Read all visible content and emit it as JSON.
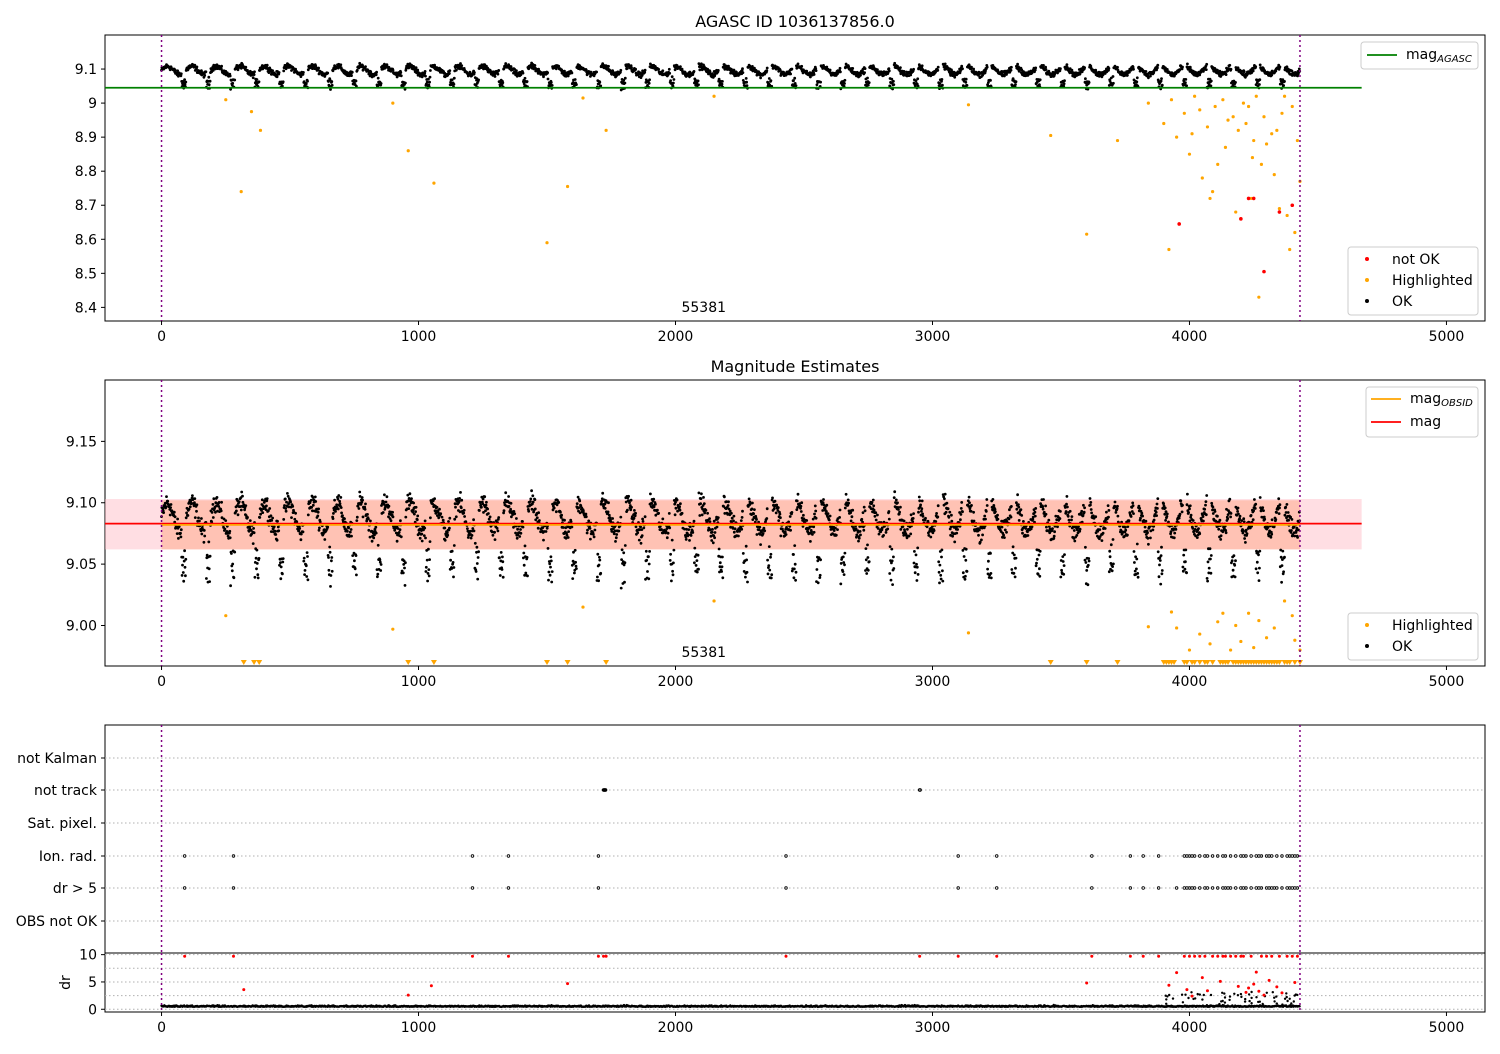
{
  "chart_data": [
    {
      "type": "scatter",
      "title": "AGASC ID 1036137856.0",
      "annotation": "55381",
      "xlim": [
        -220,
        5150
      ],
      "ylim": [
        8.36,
        9.2
      ],
      "x_ticks": [
        0,
        1000,
        2000,
        3000,
        4000,
        5000
      ],
      "y_ticks": [
        8.4,
        8.5,
        8.6,
        8.7,
        8.8,
        8.9,
        9.0,
        9.1
      ],
      "vlines": [
        0,
        4430
      ],
      "legend_lines": [
        {
          "name": "mag$_{AGASC}$",
          "label": "mag",
          "sub": "AGASC",
          "color": "#008000",
          "y": 9.045,
          "x_range": [
            -220,
            4670
          ]
        }
      ],
      "legend_points": [
        {
          "name": "not OK",
          "color": "#ff0000"
        },
        {
          "name": "Highlighted",
          "color": "#ffa500"
        },
        {
          "name": "OK",
          "color": "#000000"
        }
      ],
      "highlighted_points": [
        [
          250,
          9.01
        ],
        [
          310,
          8.74
        ],
        [
          350,
          8.975
        ],
        [
          385,
          8.92
        ],
        [
          900,
          9.0
        ],
        [
          960,
          8.86
        ],
        [
          1060,
          8.765
        ],
        [
          1500,
          8.59
        ],
        [
          1580,
          8.755
        ],
        [
          1640,
          9.015
        ],
        [
          1730,
          8.92
        ],
        [
          2150,
          9.02
        ],
        [
          3140,
          8.995
        ],
        [
          3460,
          8.905
        ],
        [
          3600,
          8.615
        ],
        [
          3720,
          8.89
        ],
        [
          3840,
          9.0
        ],
        [
          3900,
          8.94
        ],
        [
          3920,
          8.57
        ],
        [
          3930,
          9.01
        ],
        [
          3950,
          8.9
        ],
        [
          3980,
          8.97
        ],
        [
          4000,
          8.85
        ],
        [
          4010,
          8.91
        ],
        [
          4020,
          9.02
        ],
        [
          4040,
          8.98
        ],
        [
          4050,
          8.78
        ],
        [
          4070,
          8.93
        ],
        [
          4080,
          8.72
        ],
        [
          4090,
          8.74
        ],
        [
          4100,
          8.99
        ],
        [
          4110,
          8.82
        ],
        [
          4130,
          9.01
        ],
        [
          4140,
          8.87
        ],
        [
          4150,
          8.95
        ],
        [
          4170,
          8.96
        ],
        [
          4180,
          8.68
        ],
        [
          4190,
          8.92
        ],
        [
          4200,
          8.66
        ],
        [
          4210,
          9.0
        ],
        [
          4220,
          8.94
        ],
        [
          4230,
          8.99
        ],
        [
          4240,
          8.72
        ],
        [
          4245,
          8.84
        ],
        [
          4250,
          8.89
        ],
        [
          4260,
          9.02
        ],
        [
          4270,
          8.43
        ],
        [
          4280,
          8.82
        ],
        [
          4290,
          8.96
        ],
        [
          4300,
          8.88
        ],
        [
          4320,
          8.91
        ],
        [
          4330,
          8.79
        ],
        [
          4340,
          8.92
        ],
        [
          4350,
          8.69
        ],
        [
          4360,
          8.97
        ],
        [
          4370,
          9.02
        ],
        [
          4380,
          8.67
        ],
        [
          4390,
          8.57
        ],
        [
          4400,
          8.99
        ],
        [
          4410,
          8.62
        ],
        [
          4420,
          8.89
        ],
        [
          4430,
          8.77
        ]
      ],
      "not_ok_points": [
        [
          3960,
          8.645
        ],
        [
          4200,
          8.66
        ],
        [
          4230,
          8.72
        ],
        [
          4250,
          8.72
        ],
        [
          4290,
          8.505
        ],
        [
          4350,
          8.68
        ],
        [
          4400,
          8.7
        ]
      ]
    },
    {
      "type": "scatter",
      "title": "Magnitude Estimates",
      "annotation": "55381",
      "xlim": [
        -220,
        5150
      ],
      "ylim": [
        8.967,
        9.2
      ],
      "x_ticks": [
        0,
        1000,
        2000,
        3000,
        4000,
        5000
      ],
      "y_ticks": [
        9.0,
        9.05,
        9.1,
        9.15
      ],
      "y_tick_labels": [
        "9.00",
        "9.05",
        "9.10",
        "9.15"
      ],
      "vlines": [
        0,
        4430
      ],
      "legend_lines": [
        {
          "name": "mag$_{OBSID}$",
          "label": "mag",
          "sub": "OBSID",
          "color": "#ffa500",
          "y": 9.082,
          "x_range": [
            0,
            4430
          ],
          "band": [
            9.062,
            9.102
          ]
        },
        {
          "name": "mag",
          "label": "mag",
          "sub": "",
          "color": "#ff0000",
          "y": 9.083,
          "x_range": [
            -220,
            4670
          ],
          "band": [
            9.062,
            9.103
          ]
        }
      ],
      "legend_points": [
        {
          "name": "Highlighted",
          "color": "#ffa500"
        },
        {
          "name": "OK",
          "color": "#000000"
        }
      ],
      "highlighted_points": [
        [
          250,
          9.008
        ],
        [
          900,
          8.997
        ],
        [
          1640,
          9.015
        ],
        [
          2150,
          9.02
        ],
        [
          3140,
          8.994
        ],
        [
          3840,
          8.999
        ],
        [
          3930,
          9.011
        ],
        [
          3950,
          8.998
        ],
        [
          4000,
          8.98
        ],
        [
          4040,
          8.993
        ],
        [
          4080,
          8.985
        ],
        [
          4110,
          9.003
        ],
        [
          4130,
          9.01
        ],
        [
          4160,
          8.98
        ],
        [
          4180,
          9.0
        ],
        [
          4200,
          8.987
        ],
        [
          4230,
          9.01
        ],
        [
          4250,
          8.982
        ],
        [
          4270,
          9.004
        ],
        [
          4300,
          8.99
        ],
        [
          4330,
          8.998
        ],
        [
          4370,
          9.02
        ],
        [
          4400,
          9.008
        ],
        [
          4410,
          8.988
        ],
        [
          4430,
          8.98
        ]
      ],
      "clipped_points_x": [
        320,
        360,
        380,
        960,
        1060,
        1500,
        1580,
        1730,
        3460,
        3600,
        3720,
        3900,
        3910,
        3920,
        3930,
        3940,
        3980,
        3990,
        4010,
        4020,
        4040,
        4060,
        4070,
        4090,
        4120,
        4130,
        4140,
        4150,
        4170,
        4180,
        4190,
        4200,
        4210,
        4220,
        4230,
        4240,
        4250,
        4260,
        4270,
        4280,
        4290,
        4300,
        4310,
        4320,
        4330,
        4340,
        4350,
        4370,
        4380,
        4390,
        4410,
        4430
      ]
    },
    {
      "type": "scatter",
      "title": "",
      "xlim": [
        -220,
        5150
      ],
      "x_ticks": [
        0,
        1000,
        2000,
        3000,
        4000,
        5000
      ],
      "vlines": [
        0,
        4430
      ],
      "flag_categories": [
        "not Kalman",
        "not track",
        "Sat. pixel.",
        "Ion. rad.",
        "dr > 5",
        "OBS not OK"
      ],
      "flag_points": {
        "not track": [
          1720,
          1722,
          1724,
          1726,
          1728,
          2950,
          2952
        ],
        "Ion. rad.": [
          90,
          280,
          1210,
          1350,
          1700,
          2430,
          3100,
          3250,
          3620,
          3770,
          3820,
          3880,
          3980,
          3990,
          4000,
          4010,
          4020,
          4040,
          4060,
          4070,
          4090,
          4110,
          4130,
          4140,
          4160,
          4180,
          4200,
          4210,
          4220,
          4240,
          4260,
          4270,
          4280,
          4300,
          4310,
          4320,
          4340,
          4360,
          4380,
          4390,
          4400,
          4410,
          4420
        ],
        "dr > 5": [
          90,
          280,
          1210,
          1350,
          1700,
          2430,
          3100,
          3250,
          3620,
          3770,
          3820,
          3880,
          3950,
          3980,
          3990,
          4000,
          4010,
          4020,
          4040,
          4060,
          4070,
          4090,
          4110,
          4130,
          4140,
          4150,
          4160,
          4180,
          4200,
          4210,
          4220,
          4240,
          4260,
          4270,
          4280,
          4300,
          4310,
          4320,
          4330,
          4340,
          4360,
          4380,
          4390,
          4400,
          4410,
          4420
        ]
      }
    },
    {
      "type": "scatter",
      "ylabel": "dr",
      "xlim": [
        -220,
        5150
      ],
      "ylim": [
        -0.5,
        10.3
      ],
      "x_ticks": [
        0,
        1000,
        2000,
        3000,
        4000,
        5000
      ],
      "y_ticks": [
        0,
        5,
        10
      ],
      "vlines": [
        0,
        4430
      ],
      "red_points": [
        [
          90,
          9.7
        ],
        [
          280,
          9.7
        ],
        [
          320,
          3.6
        ],
        [
          960,
          2.6
        ],
        [
          1050,
          4.3
        ],
        [
          1210,
          9.7
        ],
        [
          1350,
          9.7
        ],
        [
          1580,
          4.7
        ],
        [
          1700,
          9.7
        ],
        [
          1720,
          9.7
        ],
        [
          1730,
          9.7
        ],
        [
          2430,
          9.7
        ],
        [
          2950,
          9.7
        ],
        [
          3100,
          9.7
        ],
        [
          3250,
          9.7
        ],
        [
          3600,
          4.8
        ],
        [
          3620,
          9.7
        ],
        [
          3770,
          9.7
        ],
        [
          3820,
          9.7
        ],
        [
          3880,
          9.7
        ],
        [
          3920,
          4.4
        ],
        [
          3950,
          6.7
        ],
        [
          3980,
          9.7
        ],
        [
          3990,
          3.6
        ],
        [
          4000,
          9.7
        ],
        [
          4010,
          2.4
        ],
        [
          4020,
          9.7
        ],
        [
          4040,
          9.7
        ],
        [
          4050,
          5.8
        ],
        [
          4060,
          9.7
        ],
        [
          4070,
          3.4
        ],
        [
          4090,
          9.7
        ],
        [
          4110,
          9.7
        ],
        [
          4120,
          5.1
        ],
        [
          4130,
          9.7
        ],
        [
          4140,
          9.7
        ],
        [
          4160,
          9.7
        ],
        [
          4180,
          9.7
        ],
        [
          4190,
          4.2
        ],
        [
          4200,
          9.7
        ],
        [
          4210,
          9.7
        ],
        [
          4220,
          3.1
        ],
        [
          4230,
          3.9
        ],
        [
          4240,
          9.7
        ],
        [
          4250,
          4.6
        ],
        [
          4260,
          6.8
        ],
        [
          4270,
          3.3
        ],
        [
          4280,
          9.7
        ],
        [
          4290,
          2.6
        ],
        [
          4300,
          9.7
        ],
        [
          4310,
          5.3
        ],
        [
          4320,
          9.7
        ],
        [
          4340,
          4.1
        ],
        [
          4350,
          9.7
        ],
        [
          4360,
          3.0
        ],
        [
          4380,
          9.7
        ],
        [
          4400,
          9.7
        ],
        [
          4410,
          4.9
        ],
        [
          4420,
          9.7
        ]
      ]
    }
  ]
}
